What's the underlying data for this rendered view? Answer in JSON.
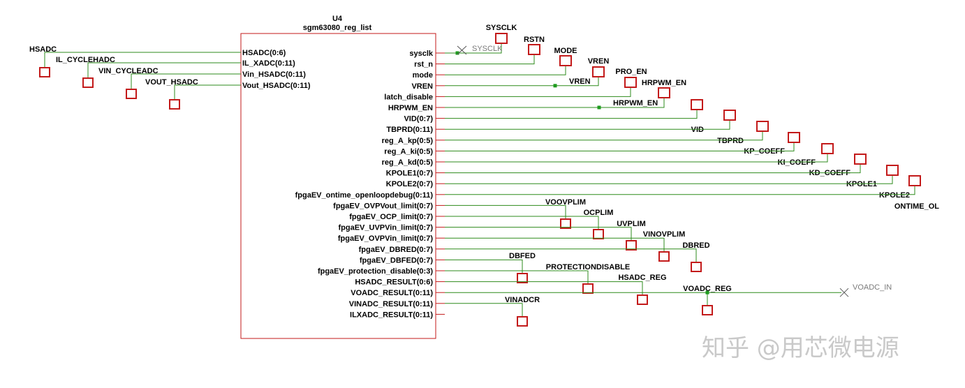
{
  "colors": {
    "wire": "#2e8b1c",
    "port": "#c31a1a",
    "text": "#000000",
    "note": "#7a7a7a",
    "junction": "#1e9b1e"
  },
  "component": {
    "ref": "U4",
    "type": "sgm63080_reg_list"
  },
  "left_ports": [
    {
      "pin": "HSADC(0:6)",
      "net": "HSADC"
    },
    {
      "pin": "IL_XADC(0:11)",
      "net": "IL_CYCLEHADC"
    },
    {
      "pin": "Vin_HSADC(0:11)",
      "net": "VIN_CYCLEADC"
    },
    {
      "pin": "Vout_HSADC(0:11)",
      "net": "VOUT_HSADC"
    }
  ],
  "right_pins": [
    "sysclk",
    "rst_n",
    "mode",
    "VREN",
    "latch_disable",
    "HRPWM_EN",
    "VID(0:7)",
    "TBPRD(0:11)",
    "reg_A_kp(0:5)",
    "reg_A_ki(0:5)",
    "reg_A_kd(0:5)",
    "KPOLE1(0:7)",
    "KPOLE2(0:7)",
    "fpgaEV_ontime_openloopdebug(0:11)",
    "fpgaEV_OVPVout_limit(0:7)",
    "fpgaEV_OCP_limit(0:7)",
    "fpgaEV_UVPVin_limit(0:7)",
    "fpgaEV_OVPVin_limit(0:7)",
    "fpgaEV_DBRED(0:7)",
    "fpgaEV_DBFED(0:7)",
    "fpgaEV_protection_disable(0:3)",
    "HSADC_RESULT(0:6)",
    "VOADC_RESULT(0:11)",
    "VINADC_RESULT(0:11)",
    "ILXADC_RESULT(0:11)"
  ],
  "net_ports": [
    "SYSCLK",
    "RSTN",
    "MODE",
    "VREN",
    "PRO_EN",
    "HRPWM_EN",
    "VID",
    "TBPRD",
    "KP_COEFF",
    "KI_COEFF",
    "KD_COEFF",
    "KPOLE1",
    "KPOLE2",
    "ONTIME_OL",
    "VOOVPLIM",
    "OCPLIM",
    "UVPLIM",
    "VINOVPLIM",
    "DBRED",
    "DBFED",
    "PROTECTIONDISABLE",
    "HSADC_REG",
    "VOADC_REG",
    "VINADCR"
  ],
  "wire_labels": [
    "VREN",
    "HRPWM_EN"
  ],
  "no_connect": [
    "SYSCLK",
    "VOADC_IN"
  ],
  "watermark": "知乎 @用芯微电源"
}
